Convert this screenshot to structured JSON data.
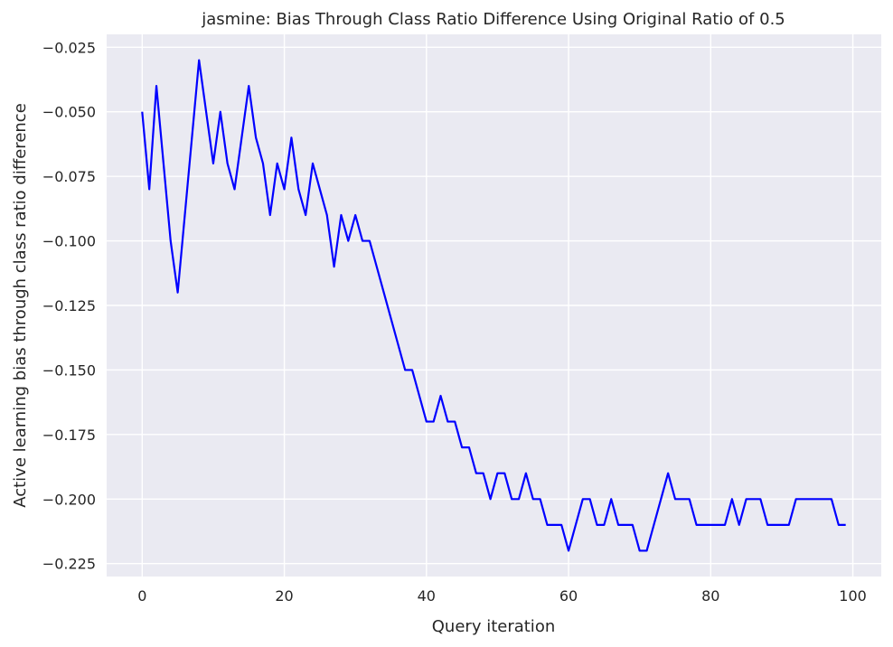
{
  "chart_data": {
    "type": "line",
    "title": "jasmine: Bias Through Class Ratio Difference Using Original Ratio of 0.5",
    "xlabel": "Query iteration",
    "ylabel": "Active learning bias through class ratio difference",
    "xlim": [
      -5.0,
      104.0
    ],
    "ylim": [
      -0.23,
      -0.02
    ],
    "xticks": [
      0,
      20,
      40,
      60,
      80,
      100
    ],
    "yticks": [
      -0.225,
      -0.2,
      -0.175,
      -0.15,
      -0.125,
      -0.1,
      -0.075,
      -0.05,
      -0.025
    ],
    "xtick_labels": [
      "0",
      "20",
      "40",
      "60",
      "80",
      "100"
    ],
    "ytick_labels": [
      "−0.225",
      "−0.200",
      "−0.175",
      "−0.150",
      "−0.125",
      "−0.100",
      "−0.075",
      "−0.050",
      "−0.025"
    ],
    "grid": true,
    "background": "#eaeaf2",
    "series": [
      {
        "color": "#0000ff",
        "x": [
          0,
          1,
          2,
          3,
          4,
          5,
          6,
          7,
          8,
          9,
          10,
          11,
          12,
          13,
          14,
          15,
          16,
          17,
          18,
          19,
          20,
          21,
          22,
          23,
          24,
          25,
          26,
          27,
          28,
          29,
          30,
          31,
          32,
          33,
          34,
          35,
          36,
          37,
          38,
          39,
          40,
          41,
          42,
          43,
          44,
          45,
          46,
          47,
          48,
          49,
          50,
          51,
          52,
          53,
          54,
          55,
          56,
          57,
          58,
          59,
          60,
          61,
          62,
          63,
          64,
          65,
          66,
          67,
          68,
          69,
          70,
          71,
          72,
          73,
          74,
          75,
          76,
          77,
          78,
          79,
          80,
          81,
          82,
          83,
          84,
          85,
          86,
          87,
          88,
          89,
          90,
          91,
          92,
          93,
          94,
          95,
          96,
          97,
          98,
          99
        ],
        "values": [
          -0.05,
          -0.08,
          -0.04,
          -0.07,
          -0.1,
          -0.12,
          -0.09,
          -0.06,
          -0.03,
          -0.05,
          -0.07,
          -0.05,
          -0.07,
          -0.08,
          -0.06,
          -0.04,
          -0.06,
          -0.07,
          -0.09,
          -0.07,
          -0.08,
          -0.06,
          -0.08,
          -0.09,
          -0.07,
          -0.08,
          -0.09,
          -0.11,
          -0.09,
          -0.1,
          -0.09,
          -0.1,
          -0.1,
          -0.11,
          -0.12,
          -0.13,
          -0.14,
          -0.15,
          -0.15,
          -0.16,
          -0.17,
          -0.17,
          -0.16,
          -0.17,
          -0.17,
          -0.18,
          -0.18,
          -0.19,
          -0.19,
          -0.2,
          -0.19,
          -0.19,
          -0.2,
          -0.2,
          -0.19,
          -0.2,
          -0.2,
          -0.21,
          -0.21,
          -0.21,
          -0.22,
          -0.21,
          -0.2,
          -0.2,
          -0.21,
          -0.21,
          -0.2,
          -0.21,
          -0.21,
          -0.21,
          -0.22,
          -0.22,
          -0.21,
          -0.2,
          -0.19,
          -0.2,
          -0.2,
          -0.2,
          -0.21,
          -0.21,
          -0.21,
          -0.21,
          -0.21,
          -0.2,
          -0.21,
          -0.2,
          -0.2,
          -0.2,
          -0.21,
          -0.21,
          -0.21,
          -0.21,
          -0.2,
          -0.2,
          -0.2,
          -0.2,
          -0.2,
          -0.2,
          -0.21,
          -0.21
        ]
      }
    ]
  }
}
